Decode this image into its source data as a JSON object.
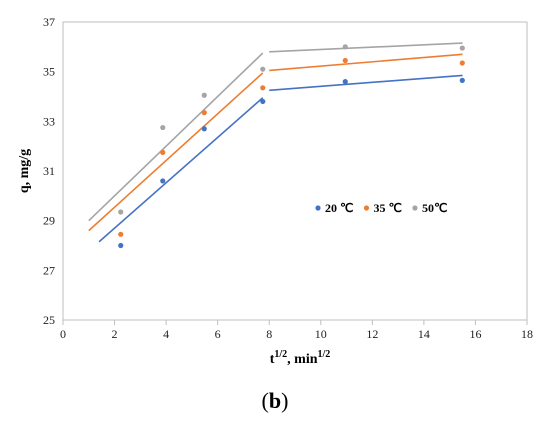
{
  "caption": {
    "open": "(",
    "letter": "b",
    "close": ")"
  },
  "chart_data": {
    "type": "scatter",
    "xlabel": "t",
    "xlabel_sup1": "1/2",
    "xlabel_mid": ", min",
    "xlabel_sup2": "1/2",
    "ylabel": "q, mg/g",
    "xlim": [
      0,
      18
    ],
    "ylim": [
      25,
      37
    ],
    "xticks": [
      0,
      2,
      4,
      6,
      8,
      10,
      12,
      14,
      16,
      18
    ],
    "yticks": [
      25,
      27,
      29,
      31,
      33,
      35,
      37
    ],
    "grid": false,
    "legend_position": "right-center",
    "series": [
      {
        "name": "20 ℃",
        "color": "#4472C4",
        "points": [
          [
            2.24,
            28.0
          ],
          [
            3.87,
            30.6
          ],
          [
            5.48,
            32.7
          ],
          [
            7.75,
            33.8
          ],
          [
            10.95,
            34.6
          ],
          [
            15.49,
            34.65
          ]
        ],
        "fit_lines": [
          [
            [
              1.4,
              28.15
            ],
            [
              7.75,
              33.95
            ]
          ],
          [
            [
              8.0,
              34.25
            ],
            [
              15.5,
              34.85
            ]
          ]
        ]
      },
      {
        "name": "35 ℃",
        "color": "#ED7D31",
        "points": [
          [
            2.24,
            28.45
          ],
          [
            3.87,
            31.75
          ],
          [
            5.48,
            33.35
          ],
          [
            7.75,
            34.35
          ],
          [
            10.95,
            35.45
          ],
          [
            15.49,
            35.35
          ]
        ],
        "fit_lines": [
          [
            [
              1.0,
              28.6
            ],
            [
              7.75,
              34.95
            ]
          ],
          [
            [
              8.0,
              35.05
            ],
            [
              15.5,
              35.7
            ]
          ]
        ]
      },
      {
        "name": "50℃",
        "color": "#A5A5A5",
        "points": [
          [
            2.24,
            29.35
          ],
          [
            3.87,
            32.75
          ],
          [
            5.48,
            34.05
          ],
          [
            7.75,
            35.1
          ],
          [
            10.95,
            36.0
          ],
          [
            15.49,
            35.95
          ]
        ],
        "fit_lines": [
          [
            [
              1.0,
              29.0
            ],
            [
              7.75,
              35.75
            ]
          ],
          [
            [
              8.0,
              35.8
            ],
            [
              15.5,
              36.15
            ]
          ]
        ]
      }
    ]
  }
}
